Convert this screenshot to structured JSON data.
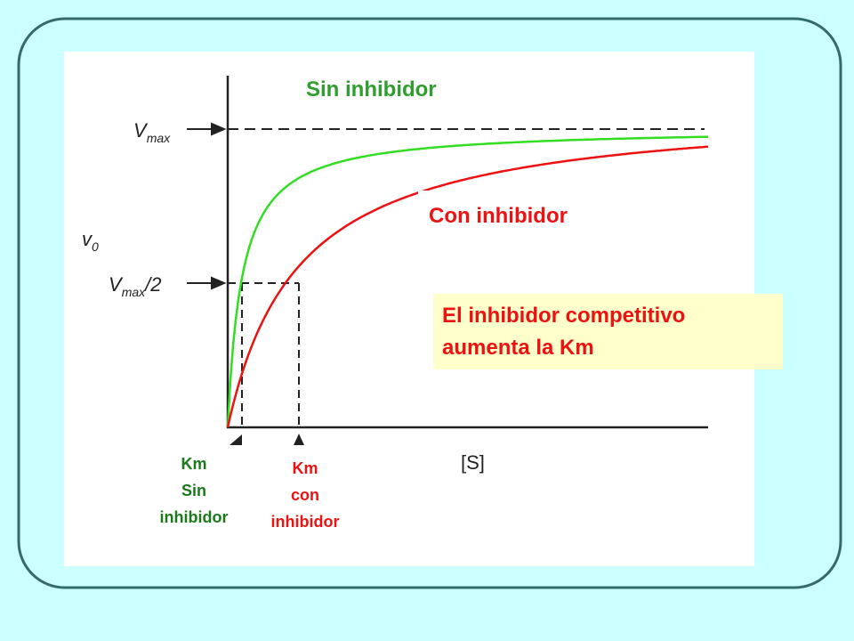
{
  "labels": {
    "sin_inhibidor": "Sin inhibidor",
    "con_inhibidor": "Con inhibidor"
  },
  "axes": {
    "y_label": {
      "main": "v",
      "sub": "0"
    },
    "x_label": "[S]",
    "vmax": {
      "main": "V",
      "sub": "max"
    },
    "vmax_half": {
      "main": "V",
      "sub": "max",
      "suffix": "/2"
    }
  },
  "km_labels": {
    "sin": [
      "Km",
      "Sin",
      "inhibidor"
    ],
    "con": [
      "Km",
      "con",
      "inhibidor"
    ]
  },
  "note": [
    "El inhibidor competitivo",
    "aumenta la Km"
  ]
}
